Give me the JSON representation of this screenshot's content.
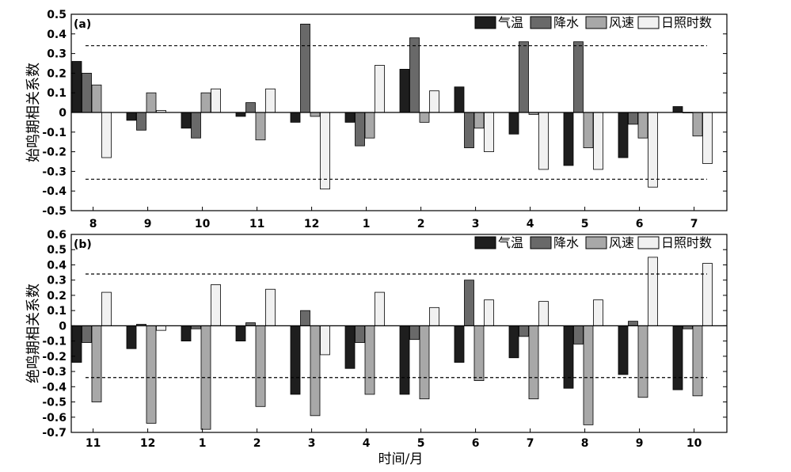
{
  "xlabel": "时间/月",
  "chart_data": [
    {
      "type": "bar",
      "panel_label": "(a)",
      "ylabel": "始鸣期相关系数",
      "xlabel": "",
      "categories": [
        "8",
        "9",
        "10",
        "11",
        "12",
        "1",
        "2",
        "3",
        "4",
        "5",
        "6",
        "7"
      ],
      "ylim": [
        -0.5,
        0.5
      ],
      "yticks": [
        -0.5,
        -0.4,
        -0.3,
        -0.2,
        -0.1,
        0,
        0.1,
        0.2,
        0.3,
        0.4,
        0.5
      ],
      "ytick_labels": [
        "-0.5",
        "-0.4",
        "-0.3",
        "-0.2",
        "-0.1",
        "0",
        "0.1",
        "0.2",
        "0.3",
        "0.4",
        "0.5"
      ],
      "reference_lines": [
        0.34,
        -0.34
      ],
      "legend": "top-right",
      "grid": false,
      "series": [
        {
          "name": "气温",
          "color": "#1e1e1e",
          "values": [
            0.26,
            -0.04,
            -0.08,
            -0.02,
            -0.05,
            -0.05,
            0.22,
            0.13,
            -0.11,
            -0.27,
            -0.23,
            0.03
          ]
        },
        {
          "name": "降水",
          "color": "#696969",
          "values": [
            0.2,
            -0.09,
            -0.13,
            0.05,
            0.45,
            -0.17,
            0.38,
            -0.18,
            0.36,
            0.36,
            -0.06,
            0.0
          ]
        },
        {
          "name": "风速",
          "color": "#a8a8a8",
          "values": [
            0.14,
            0.1,
            0.1,
            -0.14,
            -0.02,
            -0.13,
            -0.05,
            -0.08,
            -0.01,
            -0.18,
            -0.13,
            -0.12
          ]
        },
        {
          "name": "日照时数",
          "color": "#f1f1f1",
          "values": [
            -0.23,
            0.01,
            0.12,
            0.12,
            -0.39,
            0.24,
            0.11,
            -0.2,
            -0.29,
            -0.29,
            -0.38,
            -0.26
          ]
        }
      ]
    },
    {
      "type": "bar",
      "panel_label": "(b)",
      "ylabel": "绝鸣期相关系数",
      "xlabel": "时间/月",
      "categories": [
        "11",
        "12",
        "1",
        "2",
        "3",
        "4",
        "5",
        "6",
        "7",
        "8",
        "9",
        "10"
      ],
      "ylim": [
        -0.7,
        0.6
      ],
      "yticks": [
        -0.7,
        -0.6,
        -0.5,
        -0.4,
        -0.3,
        -0.2,
        -0.1,
        0,
        0.1,
        0.2,
        0.3,
        0.4,
        0.5,
        0.6
      ],
      "ytick_labels": [
        "-0.7",
        "-0.6",
        "-0.5",
        "-0.4",
        "-0.3",
        "-0.2",
        "-0.1",
        "0",
        "0.1",
        "0.2",
        "0.3",
        "0.4",
        "0.5",
        "0.6"
      ],
      "reference_lines": [
        0.34,
        -0.34
      ],
      "legend": "top-right",
      "grid": false,
      "series": [
        {
          "name": "气温",
          "color": "#1e1e1e",
          "values": [
            -0.24,
            -0.15,
            -0.1,
            -0.1,
            -0.45,
            -0.28,
            -0.45,
            -0.24,
            -0.21,
            -0.41,
            -0.32,
            -0.42
          ]
        },
        {
          "name": "降水",
          "color": "#696969",
          "values": [
            -0.11,
            0.01,
            -0.02,
            0.02,
            0.1,
            -0.11,
            -0.09,
            0.3,
            -0.07,
            -0.12,
            0.03,
            -0.02
          ]
        },
        {
          "name": "风速",
          "color": "#a8a8a8",
          "values": [
            -0.5,
            -0.64,
            -0.68,
            -0.53,
            -0.59,
            -0.45,
            -0.48,
            -0.36,
            -0.48,
            -0.65,
            -0.47,
            -0.46
          ]
        },
        {
          "name": "日照时数",
          "color": "#f1f1f1",
          "values": [
            0.22,
            -0.03,
            0.27,
            0.24,
            -0.19,
            0.22,
            0.12,
            0.17,
            0.16,
            0.17,
            0.45,
            0.41
          ]
        }
      ]
    }
  ]
}
